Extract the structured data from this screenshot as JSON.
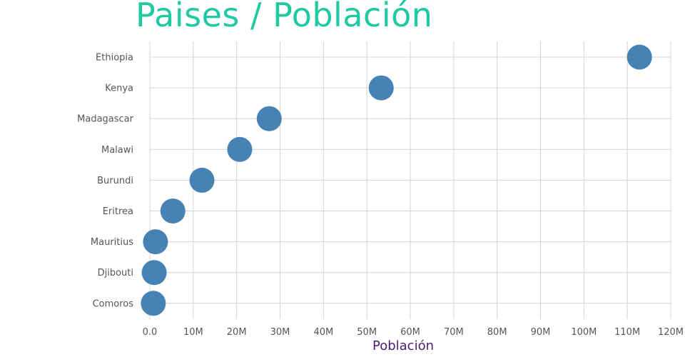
{
  "chart_data": {
    "type": "scatter",
    "title": "Paises / Población",
    "xlabel": "Población",
    "ylabel": "",
    "xlim": [
      0,
      120000000
    ],
    "x_ticks": [
      0,
      10000000,
      20000000,
      30000000,
      40000000,
      50000000,
      60000000,
      70000000,
      80000000,
      90000000,
      100000000,
      110000000,
      120000000
    ],
    "x_tick_labels": [
      "0.0",
      "10M",
      "20M",
      "30M",
      "40M",
      "50M",
      "60M",
      "70M",
      "80M",
      "90M",
      "100M",
      "110M",
      "120M"
    ],
    "categories": [
      "Ethiopia",
      "Kenya",
      "Madagascar",
      "Malawi",
      "Burundi",
      "Eritrea",
      "Mauritius",
      "Djibouti",
      "Comoros"
    ],
    "values": [
      112800000,
      53300000,
      27500000,
      20700000,
      12000000,
      5300000,
      1300000,
      1000000,
      800000
    ],
    "grid": true,
    "marker_color": "#4682b4",
    "title_color": "#1ec9a3",
    "xlabel_color": "#4b1d6e"
  }
}
